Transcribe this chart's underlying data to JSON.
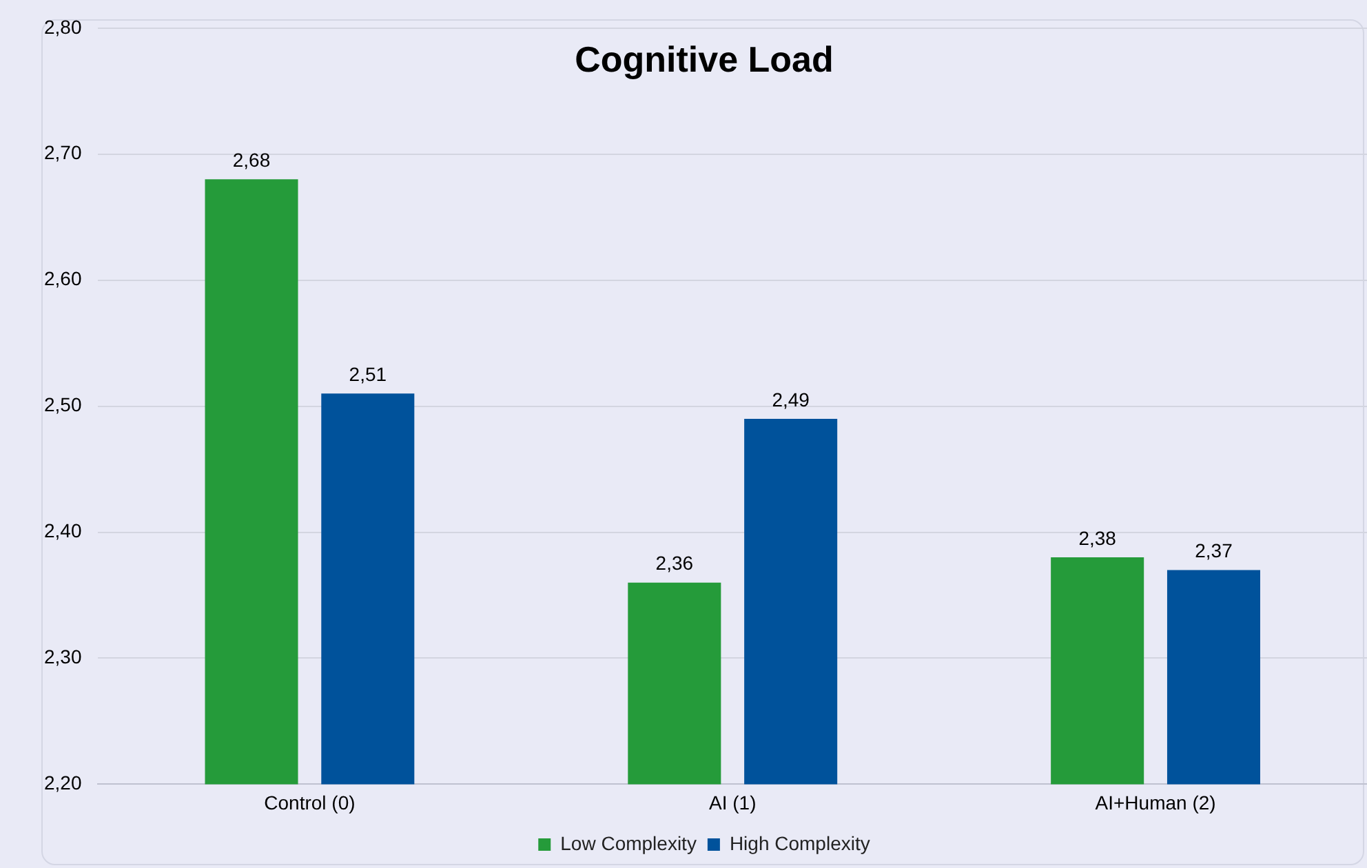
{
  "chart_data": {
    "type": "bar",
    "title": "Cognitive Load",
    "categories": [
      "Control (0)",
      "AI (1)",
      "AI+Human (2)"
    ],
    "series": [
      {
        "name": "Low Complexity",
        "color": "#259b3a",
        "values": [
          2.68,
          2.36,
          2.38
        ],
        "value_labels": [
          "2,68",
          "2,36",
          "2,38"
        ]
      },
      {
        "name": "High Complexity",
        "color": "#00529b",
        "values": [
          2.51,
          2.49,
          2.37
        ],
        "value_labels": [
          "2,51",
          "2,49",
          "2,37"
        ]
      }
    ],
    "ylim": [
      2.2,
      2.8
    ],
    "yticks": [
      {
        "value": 2.2,
        "label": "2,20"
      },
      {
        "value": 2.3,
        "label": "2,30"
      },
      {
        "value": 2.4,
        "label": "2,40"
      },
      {
        "value": 2.5,
        "label": "2,50"
      },
      {
        "value": 2.6,
        "label": "2,60"
      },
      {
        "value": 2.7,
        "label": "2,70"
      },
      {
        "value": 2.8,
        "label": "2,80"
      }
    ],
    "grid": "y",
    "legend": "bottom"
  }
}
